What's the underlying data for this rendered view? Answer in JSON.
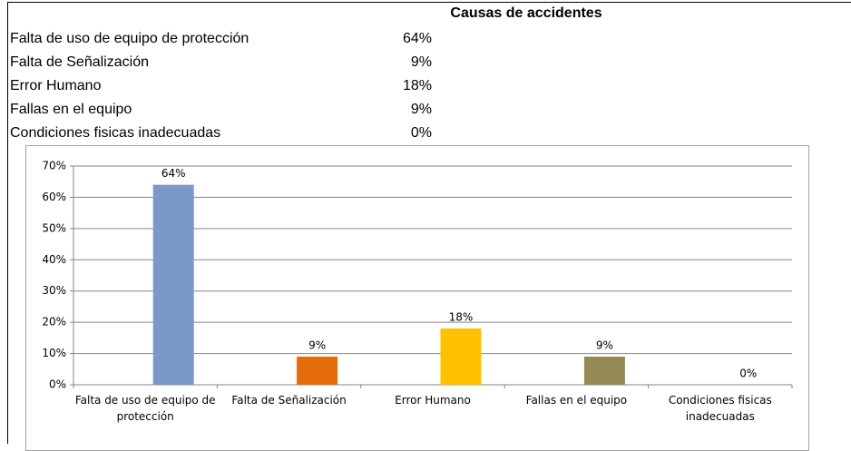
{
  "table": {
    "title": "Causas de accidentes",
    "rows": [
      [
        "Falta de uso de equipo de protección",
        "64%"
      ],
      [
        "Falta de Señalización",
        "9%"
      ],
      [
        "Error Humano",
        "18%"
      ],
      [
        "Fallas en el equipo",
        "9%"
      ],
      [
        "Condiciones fisicas inadecuadas",
        "0%"
      ]
    ]
  },
  "chart_data": {
    "type": "bar",
    "categories": [
      "Falta de uso de equipo de protección",
      "Falta de Señalización",
      "Error Humano",
      "Fallas en el equipo",
      "Condiciones fisicas inadecuadas"
    ],
    "values": [
      64,
      9,
      18,
      9,
      0
    ],
    "value_labels": [
      "64%",
      "9%",
      "18%",
      "9%",
      "0%"
    ],
    "colors": [
      "#7b98c8",
      "#e46c0a",
      "#ffc000",
      "#948a54",
      "#4f81bd"
    ],
    "ylim": [
      0,
      70
    ],
    "yticks": [
      {
        "value": 0,
        "label": "0%"
      },
      {
        "value": 10,
        "label": "10%"
      },
      {
        "value": 20,
        "label": "20%"
      },
      {
        "value": 30,
        "label": "30%"
      },
      {
        "value": 40,
        "label": "40%"
      },
      {
        "value": 50,
        "label": "50%"
      },
      {
        "value": 60,
        "label": "60%"
      },
      {
        "value": 70,
        "label": "70%"
      }
    ],
    "grid": true
  }
}
